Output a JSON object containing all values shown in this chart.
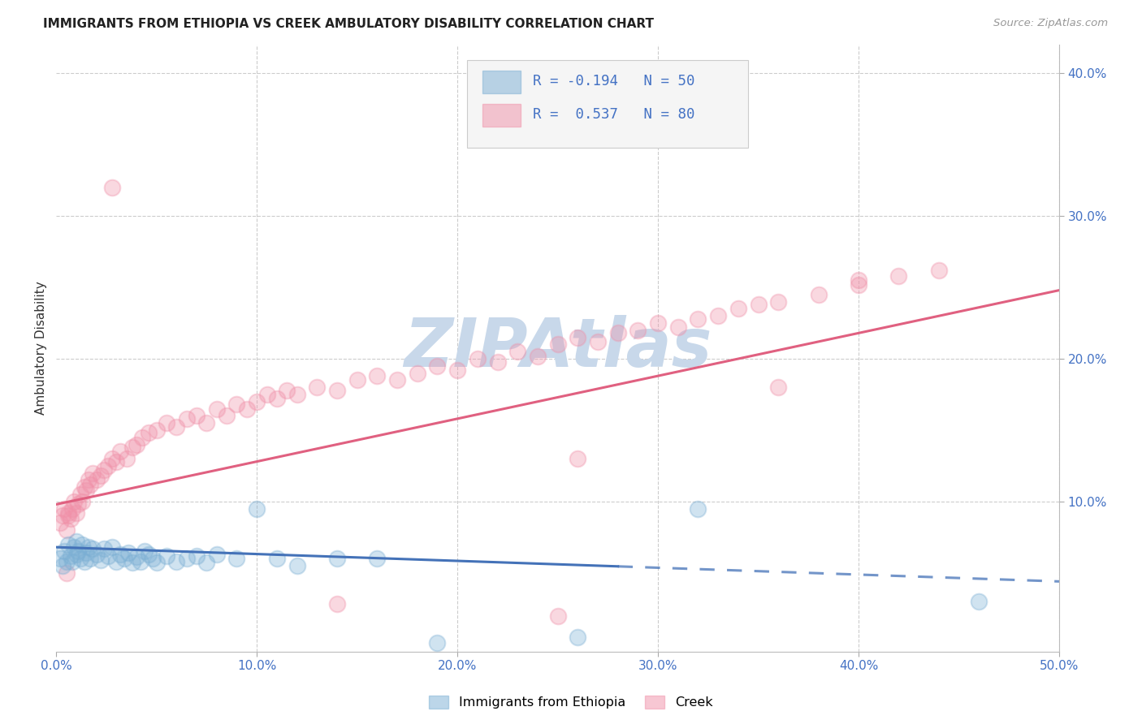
{
  "title": "IMMIGRANTS FROM ETHIOPIA VS CREEK AMBULATORY DISABILITY CORRELATION CHART",
  "source": "Source: ZipAtlas.com",
  "ylabel": "Ambulatory Disability",
  "xlim": [
    0.0,
    0.5
  ],
  "ylim": [
    -0.005,
    0.42
  ],
  "blue_color": "#7bafd4",
  "pink_color": "#f090a8",
  "blue_line_color": "#4472b8",
  "pink_line_color": "#e06080",
  "grid_color": "#cccccc",
  "watermark_color": "#c8d8ea",
  "title_color": "#222222",
  "axis_tick_color": "#4472c4",
  "blue_R": -0.194,
  "pink_R": 0.537,
  "blue_N": 50,
  "pink_N": 80,
  "blue_intercept": 0.068,
  "blue_slope": -0.048,
  "pink_intercept": 0.098,
  "pink_slope": 0.3,
  "blue_points_x": [
    0.002,
    0.003,
    0.004,
    0.005,
    0.006,
    0.007,
    0.008,
    0.009,
    0.01,
    0.01,
    0.011,
    0.012,
    0.013,
    0.014,
    0.015,
    0.016,
    0.017,
    0.018,
    0.02,
    0.022,
    0.024,
    0.026,
    0.028,
    0.03,
    0.032,
    0.034,
    0.036,
    0.038,
    0.04,
    0.042,
    0.044,
    0.046,
    0.048,
    0.05,
    0.055,
    0.06,
    0.065,
    0.07,
    0.075,
    0.08,
    0.09,
    0.1,
    0.11,
    0.12,
    0.14,
    0.16,
    0.19,
    0.26,
    0.32,
    0.46
  ],
  "blue_points_y": [
    0.06,
    0.055,
    0.065,
    0.058,
    0.07,
    0.062,
    0.058,
    0.068,
    0.063,
    0.072,
    0.065,
    0.06,
    0.07,
    0.058,
    0.064,
    0.068,
    0.06,
    0.067,
    0.063,
    0.059,
    0.067,
    0.062,
    0.068,
    0.058,
    0.063,
    0.06,
    0.064,
    0.057,
    0.061,
    0.058,
    0.065,
    0.063,
    0.06,
    0.057,
    0.062,
    0.058,
    0.06,
    0.062,
    0.057,
    0.063,
    0.06,
    0.095,
    0.06,
    0.055,
    0.06,
    0.06,
    0.001,
    0.005,
    0.095,
    0.03
  ],
  "pink_points_x": [
    0.002,
    0.003,
    0.004,
    0.005,
    0.006,
    0.007,
    0.008,
    0.009,
    0.01,
    0.011,
    0.012,
    0.013,
    0.014,
    0.015,
    0.016,
    0.017,
    0.018,
    0.02,
    0.022,
    0.024,
    0.026,
    0.028,
    0.03,
    0.032,
    0.035,
    0.038,
    0.04,
    0.043,
    0.046,
    0.05,
    0.055,
    0.06,
    0.065,
    0.07,
    0.075,
    0.08,
    0.085,
    0.09,
    0.095,
    0.1,
    0.105,
    0.11,
    0.115,
    0.12,
    0.13,
    0.14,
    0.15,
    0.16,
    0.17,
    0.18,
    0.19,
    0.2,
    0.21,
    0.22,
    0.23,
    0.24,
    0.25,
    0.26,
    0.27,
    0.28,
    0.29,
    0.3,
    0.31,
    0.32,
    0.33,
    0.34,
    0.35,
    0.36,
    0.38,
    0.4,
    0.42,
    0.44,
    0.005,
    0.006,
    0.028,
    0.25,
    0.26,
    0.14,
    0.36,
    0.4
  ],
  "pink_points_y": [
    0.085,
    0.09,
    0.095,
    0.08,
    0.092,
    0.088,
    0.095,
    0.1,
    0.092,
    0.098,
    0.105,
    0.1,
    0.11,
    0.108,
    0.115,
    0.112,
    0.12,
    0.115,
    0.118,
    0.122,
    0.125,
    0.13,
    0.128,
    0.135,
    0.13,
    0.138,
    0.14,
    0.145,
    0.148,
    0.15,
    0.155,
    0.152,
    0.158,
    0.16,
    0.155,
    0.165,
    0.16,
    0.168,
    0.165,
    0.17,
    0.175,
    0.172,
    0.178,
    0.175,
    0.18,
    0.178,
    0.185,
    0.188,
    0.185,
    0.19,
    0.195,
    0.192,
    0.2,
    0.198,
    0.205,
    0.202,
    0.21,
    0.215,
    0.212,
    0.218,
    0.22,
    0.225,
    0.222,
    0.228,
    0.23,
    0.235,
    0.238,
    0.24,
    0.245,
    0.252,
    0.258,
    0.262,
    0.05,
    0.09,
    0.32,
    0.02,
    0.13,
    0.028,
    0.18,
    0.255
  ]
}
